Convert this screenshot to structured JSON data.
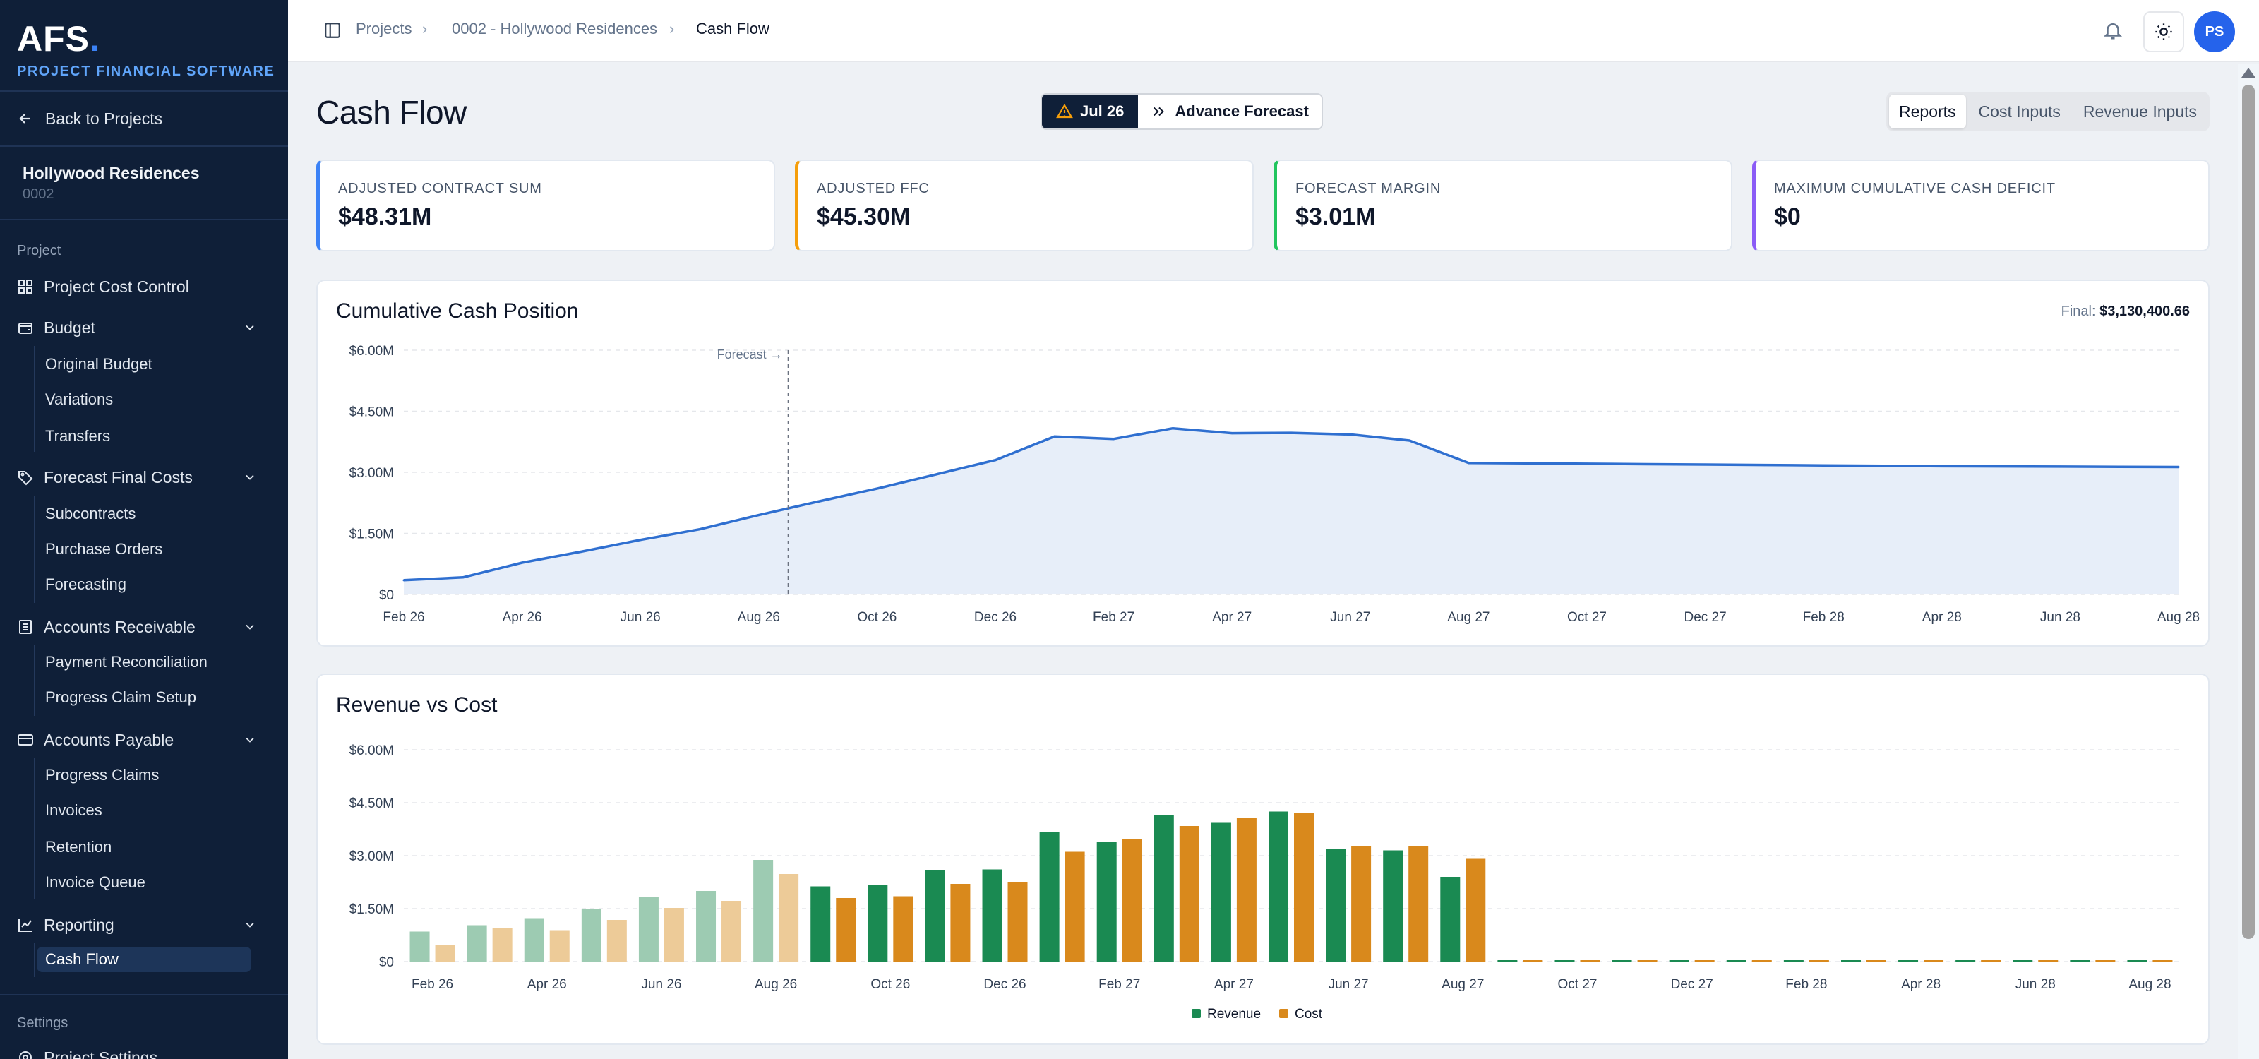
{
  "brand": {
    "logo": "AFS",
    "logo_dot": ".",
    "subtitle": "PROJECT FINANCIAL SOFTWARE"
  },
  "sidebar": {
    "back_label": "Back to Projects",
    "project": {
      "name": "Hollywood Residences",
      "code": "0002"
    },
    "section_project": "Project",
    "section_settings": "Settings",
    "items": [
      {
        "label": "Project Cost Control",
        "icon": "grid-icon"
      },
      {
        "label": "Budget",
        "icon": "wallet-icon",
        "children": [
          "Original Budget",
          "Variations",
          "Transfers"
        ]
      },
      {
        "label": "Forecast Final Costs",
        "icon": "tag-icon",
        "children": [
          "Subcontracts",
          "Purchase Orders",
          "Forecasting"
        ]
      },
      {
        "label": "Accounts Receivable",
        "icon": "building-icon",
        "children": [
          "Payment Reconciliation",
          "Progress Claim Setup"
        ]
      },
      {
        "label": "Accounts Payable",
        "icon": "credit-card-icon",
        "children": [
          "Progress Claims",
          "Invoices",
          "Retention",
          "Invoice Queue"
        ]
      },
      {
        "label": "Reporting",
        "icon": "chart-icon",
        "children": [
          "Cash Flow"
        ]
      }
    ],
    "settings_item": "Project Settings",
    "active": "Cash Flow"
  },
  "breadcrumb": [
    "Projects",
    "0002 - Hollywood Residences",
    "Cash Flow"
  ],
  "topbar": {
    "avatar_initials": "PS"
  },
  "page": {
    "title": "Cash Flow",
    "period": "Jul 26",
    "advance_label": "Advance Forecast",
    "tabs": [
      "Reports",
      "Cost Inputs",
      "Revenue Inputs"
    ],
    "active_tab": "Reports"
  },
  "kpis": [
    {
      "label": "ADJUSTED CONTRACT SUM",
      "value": "$48.31M",
      "color": "#3b82f6"
    },
    {
      "label": "ADJUSTED FFC",
      "value": "$45.30M",
      "color": "#f59e0b"
    },
    {
      "label": "FORECAST MARGIN",
      "value": "$3.01M",
      "color": "#22c55e"
    },
    {
      "label": "MAXIMUM CUMULATIVE CASH DEFICIT",
      "value": "$0",
      "color": "#8b5cf6"
    }
  ],
  "chart_data": [
    {
      "type": "area",
      "title": "Cumulative Cash Position",
      "final_label": "Final:",
      "final_value": "$3,130,400.66",
      "forecast_label": "Forecast →",
      "forecast_start": "Sep 26",
      "months": [
        "Feb 26",
        "Mar 26",
        "Apr 26",
        "May 26",
        "Jun 26",
        "Jul 26",
        "Aug 26",
        "Sep 26",
        "Oct 26",
        "Nov 26",
        "Dec 26",
        "Jan 27",
        "Feb 27",
        "Mar 27",
        "Apr 27",
        "May 27",
        "Jun 27",
        "Jul 27",
        "Aug 27",
        "Sep 27",
        "Oct 27",
        "Nov 27",
        "Dec 27",
        "Jan 28",
        "Feb 28",
        "Mar 28",
        "Apr 28",
        "May 28",
        "Jun 28",
        "Jul 28",
        "Aug 28"
      ],
      "x_ticks": [
        "Feb 26",
        "Apr 26",
        "Jun 26",
        "Aug 26",
        "Oct 26",
        "Dec 26",
        "Feb 27",
        "Apr 27",
        "Jun 27",
        "Aug 27",
        "Oct 27",
        "Dec 27",
        "Feb 28",
        "Apr 28",
        "Jun 28",
        "Aug 28"
      ],
      "y_ticks": [
        "$0",
        "$1.50M",
        "$3.00M",
        "$4.50M",
        "$6.00M"
      ],
      "ylim": [
        0,
        6000000
      ],
      "values": [
        350000,
        420000,
        780000,
        1050000,
        1340000,
        1600000,
        1950000,
        2280000,
        2600000,
        2950000,
        3300000,
        3880000,
        3820000,
        4080000,
        3960000,
        3970000,
        3930000,
        3780000,
        3230000,
        3220000,
        3210000,
        3200000,
        3190000,
        3180000,
        3170000,
        3160000,
        3150000,
        3145000,
        3140000,
        3135000,
        3130400
      ],
      "color": "#2f6fd0",
      "fill": "#e7eef9"
    },
    {
      "type": "bar",
      "title": "Revenue vs Cost",
      "months": [
        "Feb 26",
        "Mar 26",
        "Apr 26",
        "May 26",
        "Jun 26",
        "Jul 26",
        "Aug 26",
        "Sep 26",
        "Oct 26",
        "Nov 26",
        "Dec 26",
        "Jan 27",
        "Feb 27",
        "Mar 27",
        "Apr 27",
        "May 27",
        "Jun 27",
        "Jul 27",
        "Aug 27",
        "Sep 27",
        "Oct 27",
        "Nov 27",
        "Dec 27",
        "Jan 28",
        "Feb 28",
        "Mar 28",
        "Apr 28",
        "May 28",
        "Jun 28",
        "Jul 28",
        "Aug 28"
      ],
      "x_ticks": [
        "Feb 26",
        "Apr 26",
        "Jun 26",
        "Aug 26",
        "Oct 26",
        "Dec 26",
        "Feb 27",
        "Apr 27",
        "Jun 27",
        "Aug 27",
        "Oct 27",
        "Dec 27",
        "Feb 28",
        "Apr 28",
        "Jun 28",
        "Aug 28"
      ],
      "y_ticks": [
        "$0",
        "$1.50M",
        "$3.00M",
        "$4.50M",
        "$6.00M"
      ],
      "ylim": [
        0,
        6000000
      ],
      "actual_months": 7,
      "series": [
        {
          "name": "Revenue",
          "color": "#1a8a52",
          "light_color": "#9dcbb2",
          "values": [
            850000,
            1030000,
            1230000,
            1480000,
            1830000,
            2000000,
            2880000,
            2130000,
            2180000,
            2590000,
            2610000,
            3660000,
            3390000,
            4150000,
            3930000,
            4250000,
            3180000,
            3150000,
            2400000,
            0,
            0,
            0,
            0,
            0,
            0,
            0,
            0,
            0,
            0,
            0,
            0
          ]
        },
        {
          "name": "Cost",
          "color": "#d9891c",
          "light_color": "#edcb98",
          "values": [
            480000,
            960000,
            890000,
            1180000,
            1520000,
            1720000,
            2480000,
            1800000,
            1850000,
            2200000,
            2240000,
            3110000,
            3460000,
            3840000,
            4080000,
            4220000,
            3260000,
            3270000,
            2910000,
            0,
            0,
            0,
            0,
            0,
            0,
            0,
            0,
            0,
            0,
            0,
            0
          ]
        }
      ]
    }
  ]
}
